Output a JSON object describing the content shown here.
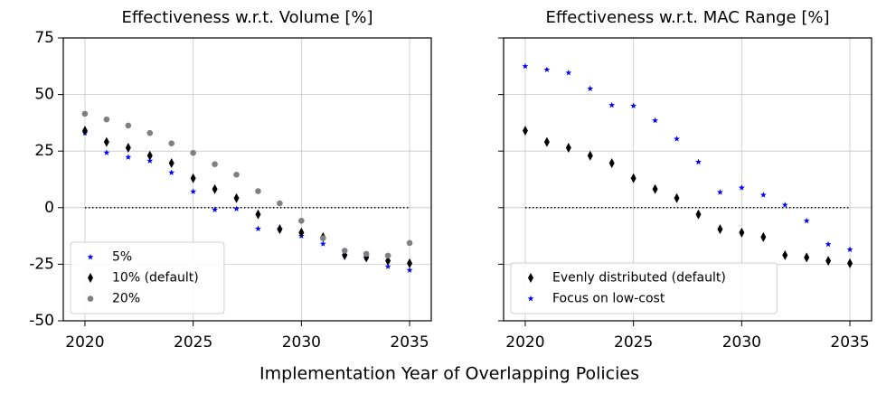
{
  "xlabel": "Implementation Year of Overlapping Policies",
  "chart_data": [
    {
      "type": "scatter",
      "title": "Effectiveness w.r.t. Volume [%]",
      "x": [
        2020,
        2021,
        2022,
        2023,
        2024,
        2025,
        2026,
        2027,
        2028,
        2029,
        2030,
        2031,
        2032,
        2033,
        2034,
        2035
      ],
      "series": [
        {
          "name": "5%",
          "color": "#0000ff",
          "marker": "star",
          "values": [
            33,
            24.3,
            22.3,
            20.7,
            15.5,
            7.1,
            -0.9,
            -0.5,
            -9.3,
            -9.5,
            -12.5,
            -16,
            -21,
            -22,
            -26,
            -27.6
          ]
        },
        {
          "name": "10% (default)",
          "color": "#000000",
          "marker": "diamond",
          "values": [
            34,
            29,
            26.5,
            23,
            19.7,
            13,
            8.2,
            4.2,
            -3,
            -9.5,
            -11,
            -13,
            -21,
            -22,
            -23.5,
            -24.6
          ]
        },
        {
          "name": "20%",
          "color": "#808080",
          "marker": "circle",
          "values": [
            41.5,
            39,
            36.3,
            33,
            28.4,
            24.2,
            19.2,
            14.6,
            7.3,
            1.9,
            -5.8,
            -13.5,
            -19,
            -20.4,
            -21.2,
            -15.6
          ]
        }
      ],
      "xlim": [
        2019,
        2036
      ],
      "xticks": [
        2020,
        2025,
        2030,
        2035
      ],
      "ylim": [
        -50,
        75
      ],
      "yticks": [
        -50,
        -25,
        0,
        25,
        50,
        75
      ],
      "reference_line": 0,
      "grid": true,
      "legend": "lower left"
    },
    {
      "type": "scatter",
      "title": "Effectiveness w.r.t. MAC Range [%]",
      "x": [
        2020,
        2021,
        2022,
        2023,
        2024,
        2025,
        2026,
        2027,
        2028,
        2029,
        2030,
        2031,
        2032,
        2033,
        2034,
        2035
      ],
      "series": [
        {
          "name": "Evenly distributed (default)",
          "color": "#000000",
          "marker": "diamond",
          "values": [
            34,
            29,
            26.5,
            23,
            19.7,
            13,
            8.2,
            4.2,
            -3,
            -9.5,
            -11,
            -13,
            -21,
            -22,
            -23.5,
            -24.6
          ]
        },
        {
          "name": "Focus on low-cost",
          "color": "#0000ff",
          "marker": "star",
          "values": [
            62.5,
            61,
            59.6,
            52.6,
            45.3,
            45,
            38.5,
            30.4,
            20.2,
            6.8,
            8.8,
            5.6,
            1.2,
            -5.8,
            -16.2,
            -18.5
          ]
        }
      ],
      "xlim": [
        2019,
        2036
      ],
      "xticks": [
        2020,
        2025,
        2030,
        2035
      ],
      "sharey": true,
      "reference_line": 0,
      "grid": true,
      "legend": "lower left"
    }
  ]
}
